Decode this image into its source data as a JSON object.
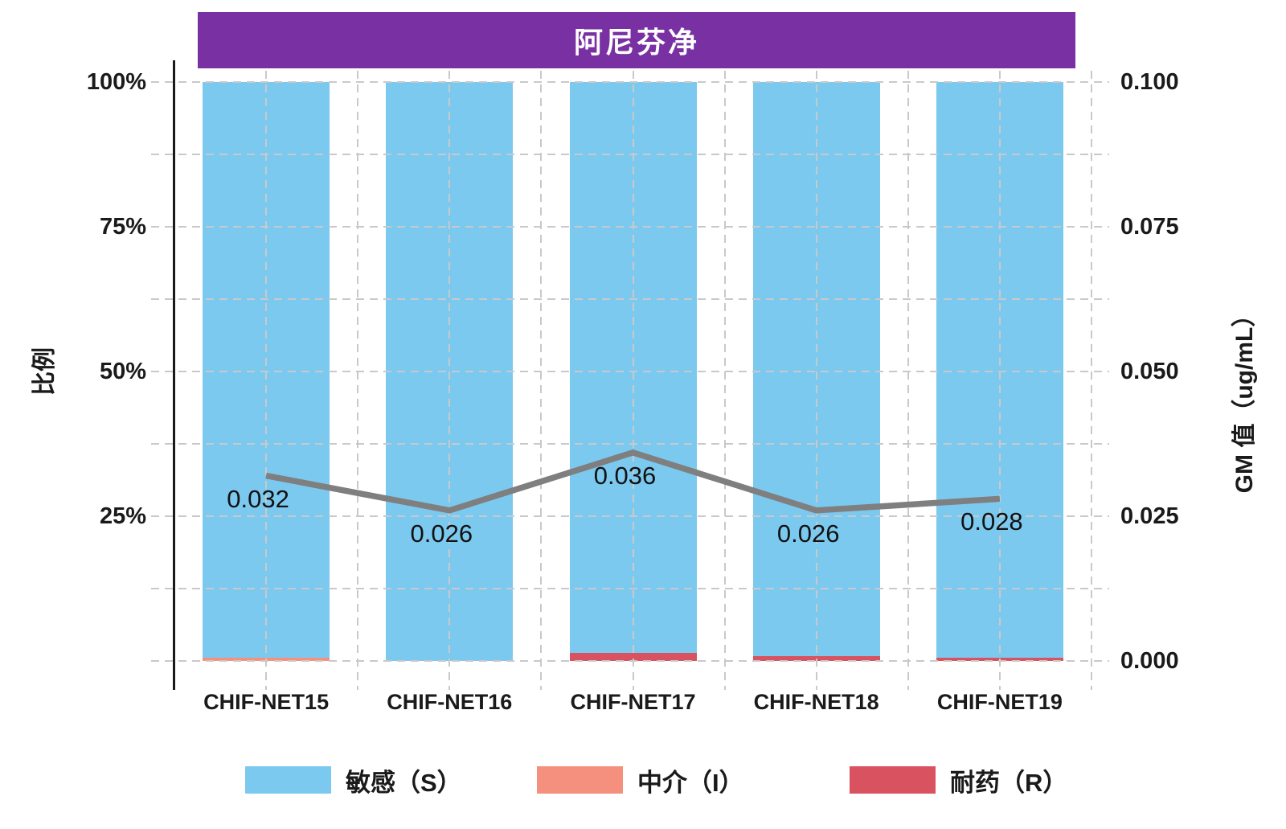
{
  "title": "阿尼芬净",
  "left_axis": {
    "label": "比例",
    "ticks": [
      {
        "label": "100%",
        "value": 100
      },
      {
        "label": "75%",
        "value": 75
      },
      {
        "label": "50%",
        "value": 50
      },
      {
        "label": "25%",
        "value": 25
      }
    ]
  },
  "right_axis": {
    "label": "GM 值（ug/mL）",
    "ticks": [
      {
        "label": "0.100",
        "value": 0.1
      },
      {
        "label": "0.075",
        "value": 0.075
      },
      {
        "label": "0.050",
        "value": 0.05
      },
      {
        "label": "0.025",
        "value": 0.025
      },
      {
        "label": "0.000",
        "value": 0.0
      }
    ]
  },
  "legend": [
    {
      "label": "敏感（S）",
      "color": "#7cc9ef"
    },
    {
      "label": "中介（I）",
      "color": "#f5907e"
    },
    {
      "label": "耐药（R）",
      "color": "#d8525f"
    }
  ],
  "colors": {
    "banner": "#7930a2",
    "grid": "#c9c9c9",
    "axis": "#1a1a1a",
    "gm_line": "#7f7f7f"
  },
  "chart_data": {
    "type": "bar",
    "subtype": "stacked-percent-bars-with-line",
    "title": "阿尼芬净",
    "categories": [
      "CHIF-NET15",
      "CHIF-NET16",
      "CHIF-NET17",
      "CHIF-NET18",
      "CHIF-NET19"
    ],
    "series": [
      {
        "name": "敏感（S）",
        "type": "bar",
        "unit": "%",
        "color": "#7cc9ef",
        "values": [
          99.4,
          100,
          98.6,
          99.2,
          99.5
        ]
      },
      {
        "name": "中介（I）",
        "type": "bar",
        "unit": "%",
        "color": "#f5907e",
        "values": [
          0.6,
          0,
          0,
          0,
          0
        ]
      },
      {
        "name": "耐药（R）",
        "type": "bar",
        "unit": "%",
        "color": "#d8525f",
        "values": [
          0,
          0,
          1.4,
          0.8,
          0.5
        ]
      },
      {
        "name": "GM值",
        "type": "line",
        "unit": "ug/mL",
        "color": "#7f7f7f",
        "values": [
          0.032,
          0.026,
          0.036,
          0.026,
          0.028
        ],
        "labels": [
          "0.032",
          "0.026",
          "0.036",
          "0.026",
          "0.028"
        ]
      }
    ],
    "y_left": {
      "label": "比例",
      "range": [
        0,
        100
      ],
      "tick_format": "percent"
    },
    "y_right": {
      "label": "GM 值（ug/mL）",
      "range": [
        0,
        0.1
      ]
    },
    "grid": "dashed",
    "legend_position": "bottom"
  }
}
